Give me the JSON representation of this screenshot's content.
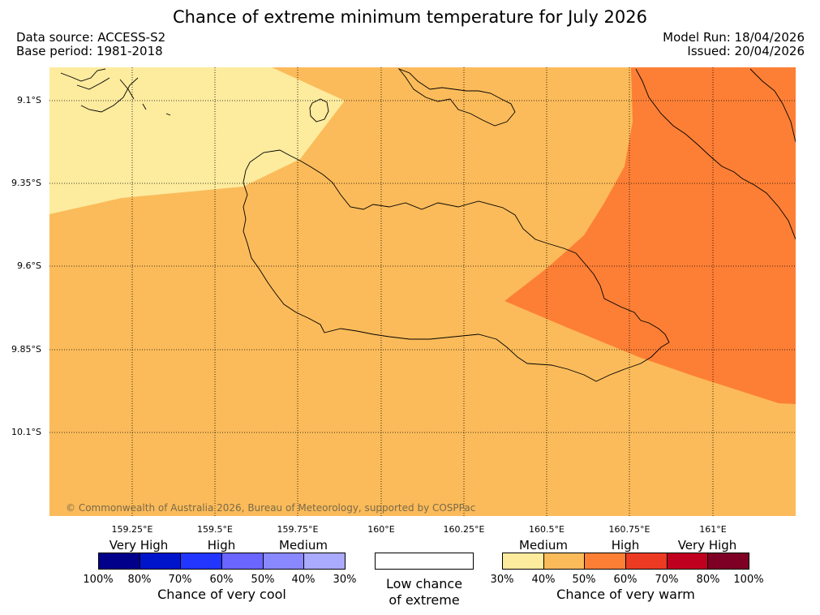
{
  "header": {
    "title": "Chance of extreme minimum temperature for July 2026",
    "data_source": "Data source: ACCESS-S2",
    "base_period": "Base period: 1981-2018",
    "model_run": "Model Run: 18/04/2026",
    "issued": "Issued: 20/04/2026"
  },
  "map": {
    "lat_labels": [
      "9.1°S",
      "9.35°S",
      "9.6°S",
      "9.85°S",
      "10.1°S"
    ],
    "lon_labels": [
      "159.25°E",
      "159.5°E",
      "159.75°E",
      "160°E",
      "160.25°E",
      "160.5°E",
      "160.75°E",
      "161°E"
    ],
    "copyright": "© Commonwealth of Australia 2026, Bureau of Meteorology, supported by COSPPac",
    "zone_colors": {
      "very_warm_30_40": "#fdeb9e",
      "very_warm_40_50": "#fbbb5a",
      "very_warm_50_60": "#fd7f35"
    }
  },
  "legend": {
    "cool": {
      "categories": [
        "Very High",
        "High",
        "Medium"
      ],
      "percent_labels": [
        "100%",
        "80%",
        "70%",
        "60%",
        "50%",
        "40%",
        "30%"
      ],
      "colors": [
        "#00008b",
        "#0014cc",
        "#2236ff",
        "#6a66ff",
        "#8a88ff",
        "#aaaaff"
      ],
      "caption": "Chance of very cool"
    },
    "neutral": {
      "caption_line1": "Low chance",
      "caption_line2": "of extreme",
      "color": "#ffffff"
    },
    "warm": {
      "categories": [
        "Medium",
        "High",
        "Very High"
      ],
      "percent_labels": [
        "30%",
        "40%",
        "50%",
        "60%",
        "70%",
        "80%",
        "100%"
      ],
      "colors": [
        "#fdeb9e",
        "#fbbb5a",
        "#fd7f35",
        "#ec3a23",
        "#c0001f",
        "#7e0025"
      ],
      "caption": "Chance of very warm"
    }
  }
}
